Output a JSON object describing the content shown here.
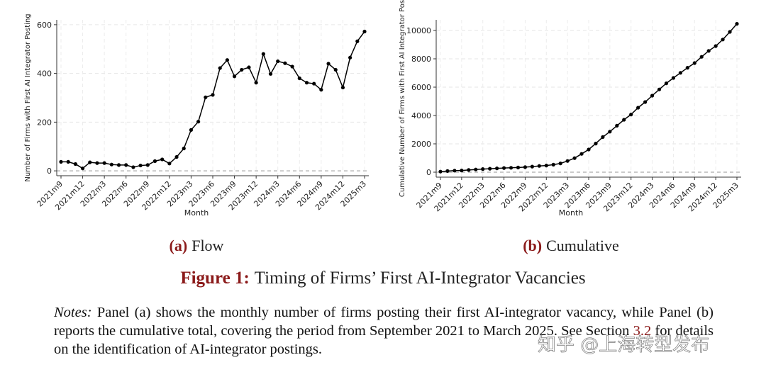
{
  "chart_data": [
    {
      "type": "line",
      "y_label": "Number of Firms with First AI Integrator Posting",
      "x_label": "Month",
      "caption": {
        "label": "(a)",
        "text": "Flow"
      },
      "categories": [
        "2021m9",
        null,
        null,
        "2021m12",
        null,
        null,
        "2022m3",
        null,
        null,
        "2022m6",
        null,
        null,
        "2022m9",
        null,
        null,
        "2022m12",
        null,
        null,
        "2023m3",
        null,
        null,
        "2023m6",
        null,
        null,
        "2023m9",
        null,
        null,
        "2023m12",
        null,
        null,
        "2024m3",
        null,
        null,
        "2024m6",
        null,
        null,
        "2024m9",
        null,
        null,
        "2024m12",
        null,
        null,
        "2025m3"
      ],
      "values": [
        37,
        37,
        28,
        10,
        35,
        32,
        32,
        26,
        24,
        24,
        15,
        22,
        24,
        40,
        47,
        30,
        57,
        92,
        168,
        202,
        302,
        312,
        422,
        455,
        388,
        415,
        425,
        362,
        480,
        398,
        450,
        442,
        428,
        380,
        362,
        358,
        333,
        440,
        415,
        342,
        465,
        532,
        572
      ],
      "color": "#000000",
      "ylim": [
        -20,
        620
      ],
      "yticks": [
        0,
        200,
        400,
        600
      ],
      "grid": true
    },
    {
      "type": "line",
      "y_label": "Cumulative Number of Firms with First AI Integrator Pos",
      "x_label": "Month",
      "caption": {
        "label": "(b)",
        "text": "Cumulative"
      },
      "categories": [
        "2021m9",
        null,
        null,
        "2021m12",
        null,
        null,
        "2022m3",
        null,
        null,
        "2022m6",
        null,
        null,
        "2022m9",
        null,
        null,
        "2022m12",
        null,
        null,
        "2023m3",
        null,
        null,
        "2023m6",
        null,
        null,
        "2023m9",
        null,
        null,
        "2023m12",
        null,
        null,
        "2024m3",
        null,
        null,
        "2024m6",
        null,
        null,
        "2024m9",
        null,
        null,
        "2024m12",
        null,
        null,
        "2025m3"
      ],
      "values": [
        40,
        80,
        110,
        120,
        155,
        190,
        220,
        245,
        270,
        295,
        310,
        330,
        355,
        395,
        440,
        470,
        530,
        620,
        790,
        990,
        1290,
        1600,
        2020,
        2480,
        2860,
        3280,
        3700,
        4070,
        4550,
        4950,
        5400,
        5840,
        6270,
        6650,
        7010,
        7370,
        7700,
        8140,
        8560,
        8900,
        9360,
        9900,
        10470
      ],
      "color": "#000000",
      "ylim": [
        -350,
        10750
      ],
      "yticks": [
        0,
        2000,
        4000,
        6000,
        8000,
        10000
      ],
      "grid": true
    }
  ],
  "figure": {
    "label": "Figure 1:",
    "title": "Timing of Firms’ First AI-Integrator Vacancies"
  },
  "notes": {
    "label": "Notes:",
    "text_before": "Panel (a) shows the monthly number of firms posting their first AI-integrator vacancy, while Panel (b) reports the cumulative total, covering the period from September 2021 to March 2025. See Section",
    "ref": "3.2",
    "text_after": "for details on the identification of AI-integrator postings."
  },
  "watermark": "知乎 @上海转型发布"
}
